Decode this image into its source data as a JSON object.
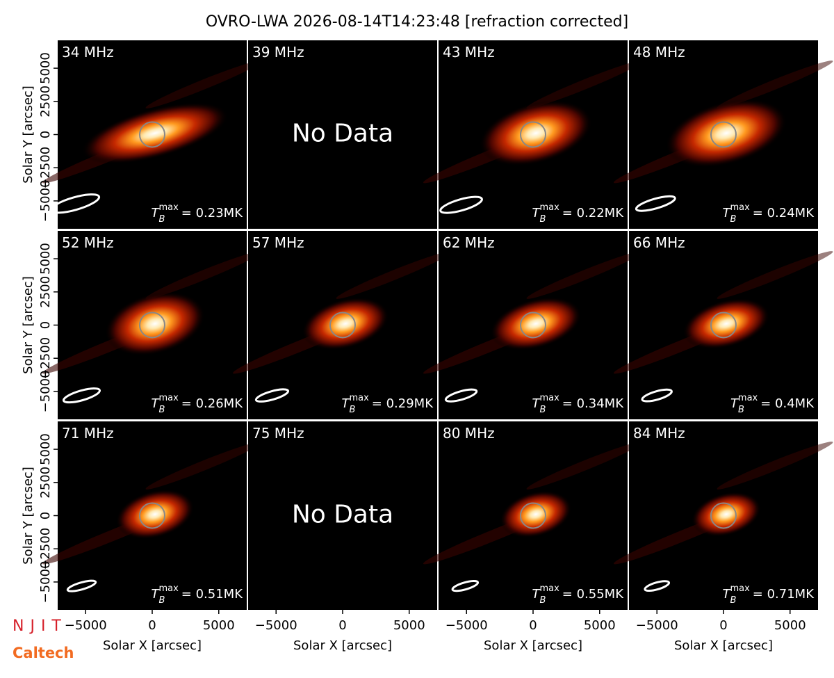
{
  "title": "OVRO-LWA 2026-08-14T14:23:48 [refraction corrected]",
  "xlabel": "Solar X [arcsec]",
  "ylabel": "Solar Y [arcsec]",
  "tb_symbol": {
    "base": "T",
    "sub": "B",
    "sup": "max"
  },
  "logos": [
    "NJIT",
    "Caltech"
  ],
  "chart_data": [
    {
      "type": "image",
      "label": "34 MHz",
      "values": [
        0.23
      ],
      "value_labels": [
        "= 0.23MK"
      ],
      "xlim": [
        -7100,
        7100
      ],
      "ylim": [
        -7100,
        7100
      ],
      "yticks": [
        {
          "value": -5000,
          "label": "−5000"
        },
        {
          "value": -2500,
          "label": "−2500"
        },
        0,
        2500,
        5000
      ]
    },
    {
      "type": "image",
      "label": "39 MHz",
      "message": "No Data",
      "xlim": [
        -7100,
        7100
      ],
      "ylim": [
        -7100,
        7100
      ]
    },
    {
      "type": "image",
      "label": "43 MHz",
      "values": [
        0.22
      ],
      "value_labels": [
        "= 0.22MK"
      ],
      "xlim": [
        -7100,
        7100
      ],
      "ylim": [
        -7100,
        7100
      ]
    },
    {
      "type": "image",
      "label": "48 MHz",
      "values": [
        0.24
      ],
      "value_labels": [
        "= 0.24MK"
      ],
      "xlim": [
        -7100,
        7100
      ],
      "ylim": [
        -7100,
        7100
      ]
    },
    {
      "type": "image",
      "label": "52 MHz",
      "values": [
        0.26
      ],
      "value_labels": [
        "= 0.26MK"
      ],
      "xlim": [
        -7100,
        7100
      ],
      "ylim": [
        -7100,
        7100
      ],
      "yticks": [
        {
          "value": -5000,
          "label": "−5000"
        },
        {
          "value": -2500,
          "label": "−2500"
        },
        0,
        2500,
        5000
      ]
    },
    {
      "type": "image",
      "label": "57 MHz",
      "values": [
        0.29
      ],
      "value_labels": [
        "= 0.29MK"
      ],
      "xlim": [
        -7100,
        7100
      ],
      "ylim": [
        -7100,
        7100
      ]
    },
    {
      "type": "image",
      "label": "62 MHz",
      "values": [
        0.34
      ],
      "value_labels": [
        "= 0.34MK"
      ],
      "xlim": [
        -7100,
        7100
      ],
      "ylim": [
        -7100,
        7100
      ]
    },
    {
      "type": "image",
      "label": "66 MHz",
      "values": [
        0.4
      ],
      "value_labels": [
        "= 0.4MK"
      ],
      "xlim": [
        -7100,
        7100
      ],
      "ylim": [
        -7100,
        7100
      ]
    },
    {
      "type": "image",
      "label": "71 MHz",
      "values": [
        0.51
      ],
      "value_labels": [
        "= 0.51MK"
      ],
      "xlim": [
        -7100,
        7100
      ],
      "ylim": [
        -7100,
        7100
      ],
      "xticks": [
        {
          "value": -5000,
          "label": "−5000"
        },
        0,
        5000
      ],
      "yticks": [
        {
          "value": -5000,
          "label": "−5000"
        },
        {
          "value": -2500,
          "label": "−2500"
        },
        0,
        2500,
        5000
      ]
    },
    {
      "type": "image",
      "label": "75 MHz",
      "message": "No Data",
      "xlim": [
        -7100,
        7100
      ],
      "ylim": [
        -7100,
        7100
      ],
      "xticks": [
        {
          "value": -5000,
          "label": "−5000"
        },
        0,
        5000
      ]
    },
    {
      "type": "image",
      "label": "80 MHz",
      "values": [
        0.55
      ],
      "value_labels": [
        "= 0.55MK"
      ],
      "xlim": [
        -7100,
        7100
      ],
      "ylim": [
        -7100,
        7100
      ],
      "xticks": [
        {
          "value": -5000,
          "label": "−5000"
        },
        0,
        5000
      ]
    },
    {
      "type": "image",
      "label": "84 MHz",
      "values": [
        0.71
      ],
      "value_labels": [
        "= 0.71MK"
      ],
      "xlim": [
        -7100,
        7100
      ],
      "ylim": [
        -7100,
        7100
      ],
      "xticks": [
        {
          "value": -5000,
          "label": "−5000"
        },
        0,
        5000
      ]
    }
  ]
}
